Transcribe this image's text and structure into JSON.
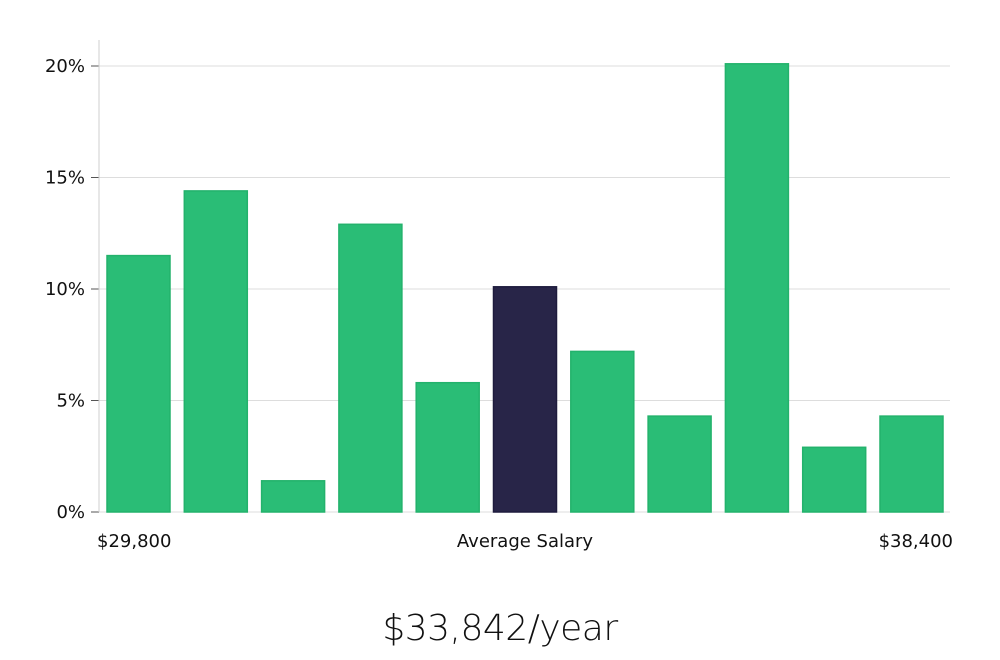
{
  "chart_data": {
    "type": "bar",
    "values": [
      11.5,
      14.4,
      1.4,
      12.9,
      5.8,
      10.1,
      7.2,
      4.3,
      20.1,
      2.9,
      4.3
    ],
    "highlight_index": 5,
    "ylim": [
      0,
      21
    ],
    "yticks": [
      {
        "value": 0,
        "label": "0%"
      },
      {
        "value": 5,
        "label": "5%"
      },
      {
        "value": 10,
        "label": "10%"
      },
      {
        "value": 15,
        "label": "15%"
      },
      {
        "value": 20,
        "label": "20%"
      }
    ],
    "xlabel": "Average Salary",
    "x_min_label": "$29,800",
    "x_max_label": "$38,400",
    "grid": true,
    "colors": {
      "bar": "#2abd76",
      "highlight": "#282548",
      "grid": "#dddddd",
      "axis": "#cfcfcf"
    }
  },
  "summary": {
    "average_salary": "$33,842/year"
  }
}
